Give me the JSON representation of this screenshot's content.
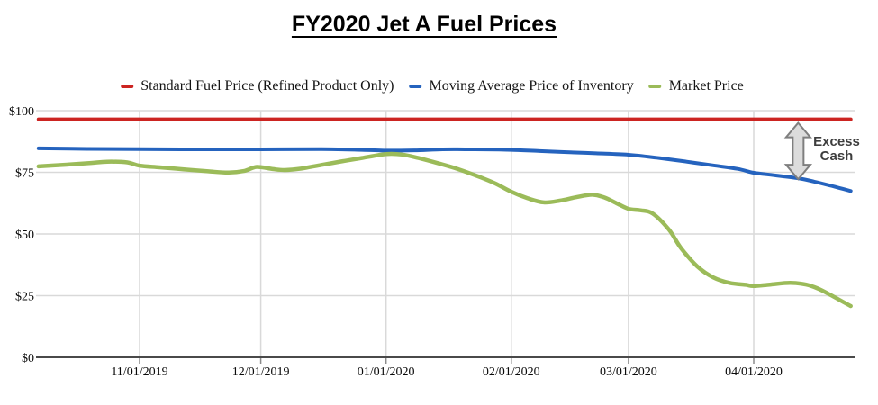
{
  "title": "FY2020 Jet A Fuel Prices",
  "legend": [
    {
      "label": "Standard Fuel Price (Refined Product Only)",
      "color": "#cc2421"
    },
    {
      "label": "Moving Average Price of Inventory",
      "color": "#2563be"
    },
    {
      "label": "Market Price",
      "color": "#9bbb59"
    }
  ],
  "annotation": {
    "text": "Excess Cash",
    "color": "#3d3d3d"
  },
  "colors": {
    "gridline": "#d9d9d9",
    "axis_line": "#4a4a4a",
    "tick_mark": "#8c8c8c",
    "arrow_fill": "#dcdcdc",
    "arrow_stroke": "#7f7f7f"
  },
  "chart_data": {
    "type": "line",
    "title": "FY2020 Jet A Fuel Prices",
    "x_unit": "day_index (0 = chart left edge, ~200 days spanning mid-Oct 2019 to late Apr 2020)",
    "xlim": [
      0,
      201
    ],
    "ylim": [
      0,
      100
    ],
    "grid": true,
    "legend_position": "top",
    "y_ticks": [
      {
        "label": "$100",
        "value": 100
      },
      {
        "label": "$75",
        "value": 75
      },
      {
        "label": "$50",
        "value": 50
      },
      {
        "label": "$25",
        "value": 25
      },
      {
        "label": "$0",
        "value": 0
      }
    ],
    "x_ticks": [
      {
        "label": "11/01/2019",
        "day": 25
      },
      {
        "label": "12/01/2019",
        "day": 55
      },
      {
        "label": "01/01/2020",
        "day": 86
      },
      {
        "label": "02/01/2020",
        "day": 117
      },
      {
        "label": "03/01/2020",
        "day": 146
      },
      {
        "label": "04/01/2020",
        "day": 177
      }
    ],
    "series": [
      {
        "id": "standard-fuel-price",
        "name": "Standard Fuel Price (Refined Product Only)",
        "color": "#cc2421",
        "points": [
          [
            0,
            96.5
          ],
          [
            201,
            96.5
          ]
        ]
      },
      {
        "id": "moving-average-price",
        "name": "Moving Average Price of Inventory",
        "color": "#2563be",
        "points": [
          [
            0,
            84.7
          ],
          [
            12,
            84.5
          ],
          [
            25,
            84.4
          ],
          [
            40,
            84.3
          ],
          [
            55,
            84.3
          ],
          [
            70,
            84.4
          ],
          [
            80,
            84.1
          ],
          [
            86,
            83.8
          ],
          [
            93,
            83.9
          ],
          [
            100,
            84.3
          ],
          [
            108,
            84.3
          ],
          [
            114,
            84.2
          ],
          [
            117,
            84.1
          ],
          [
            124,
            83.6
          ],
          [
            130,
            83.2
          ],
          [
            138,
            82.7
          ],
          [
            146,
            82.1
          ],
          [
            153,
            80.9
          ],
          [
            160,
            79.4
          ],
          [
            167,
            77.8
          ],
          [
            173,
            76.4
          ],
          [
            177,
            74.8
          ],
          [
            181,
            74.0
          ],
          [
            188,
            72.6
          ],
          [
            192,
            71.2
          ],
          [
            196,
            69.6
          ],
          [
            201,
            67.4
          ]
        ]
      },
      {
        "id": "market-price",
        "name": "Market Price",
        "color": "#9bbb59",
        "points": [
          [
            0,
            77.4
          ],
          [
            7,
            78.1
          ],
          [
            13,
            78.8
          ],
          [
            17,
            79.3
          ],
          [
            22,
            79.0
          ],
          [
            25,
            77.7
          ],
          [
            30,
            77.0
          ],
          [
            36,
            76.2
          ],
          [
            42,
            75.4
          ],
          [
            47,
            74.9
          ],
          [
            51,
            75.6
          ],
          [
            54,
            77.2
          ],
          [
            58,
            76.3
          ],
          [
            61,
            75.9
          ],
          [
            65,
            76.5
          ],
          [
            70,
            78.0
          ],
          [
            75,
            79.4
          ],
          [
            80,
            80.8
          ],
          [
            86,
            82.4
          ],
          [
            90,
            82.2
          ],
          [
            94,
            80.8
          ],
          [
            99,
            78.6
          ],
          [
            104,
            76.2
          ],
          [
            109,
            73.2
          ],
          [
            113,
            70.5
          ],
          [
            117,
            67.1
          ],
          [
            121,
            64.5
          ],
          [
            125,
            62.8
          ],
          [
            129,
            63.5
          ],
          [
            133,
            64.9
          ],
          [
            137,
            65.9
          ],
          [
            140,
            64.8
          ],
          [
            143,
            62.5
          ],
          [
            146,
            60.2
          ],
          [
            149,
            59.6
          ],
          [
            152,
            58.3
          ],
          [
            156,
            51.8
          ],
          [
            159,
            44.3
          ],
          [
            163,
            36.9
          ],
          [
            167,
            32.4
          ],
          [
            171,
            30.2
          ],
          [
            175,
            29.4
          ],
          [
            177,
            28.9
          ],
          [
            181,
            29.5
          ],
          [
            186,
            30.2
          ],
          [
            190,
            29.5
          ],
          [
            193,
            27.8
          ],
          [
            196,
            25.3
          ],
          [
            201,
            20.8
          ]
        ]
      }
    ],
    "annotation": {
      "text": "Excess Cash",
      "arrow": {
        "day": 188,
        "from_value": 96.5,
        "to_value": 72.2
      }
    }
  }
}
